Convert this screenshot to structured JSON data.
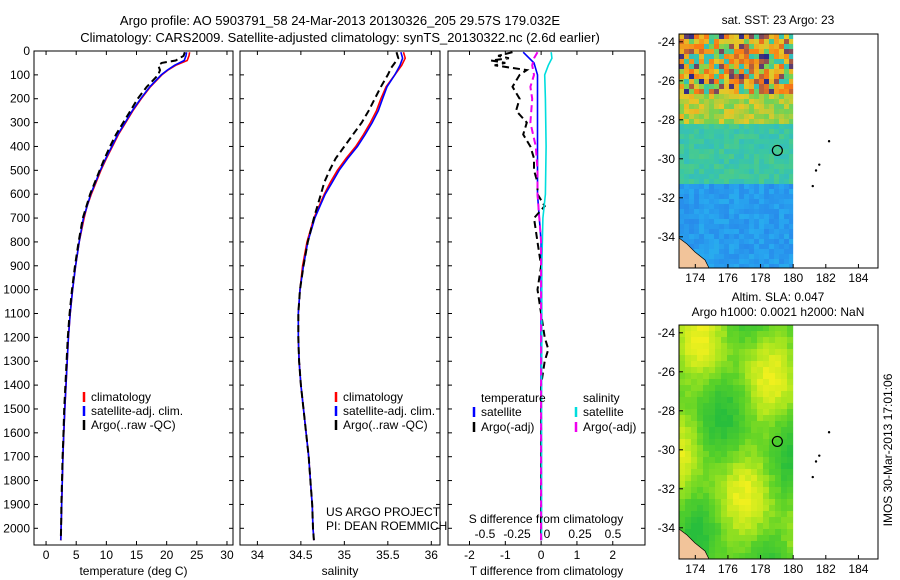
{
  "header": {
    "line1": "Argo profile: AO 5903791_58 24-Mar-2013 20130326_205 29.57S 179.032E",
    "line2": "Climatology: CARS2009. Satellite-adjusted climatology: synTS_20130322.nc (2.6d earlier)"
  },
  "colors": {
    "climatology": "#ff0000",
    "satellite": "#0000ff",
    "argo": "#000000",
    "sal_satellite": "#00dddd",
    "sal_argo": "#ee00ee",
    "land": "#f2c49a"
  },
  "chart_data": [
    {
      "type": "line",
      "panel": "temperature",
      "xlabel": "temperature (deg C)",
      "xlim": [
        -2,
        31
      ],
      "xticks": [
        0,
        5,
        10,
        15,
        20,
        25,
        30
      ],
      "ylim": [
        2070,
        0
      ],
      "yticks": [
        0,
        100,
        200,
        300,
        400,
        500,
        600,
        700,
        800,
        900,
        1000,
        1100,
        1200,
        1300,
        1400,
        1500,
        1600,
        1700,
        1800,
        1900,
        2000
      ],
      "grid": false,
      "legend": {
        "placement": "bottom-right",
        "entries": [
          "climatology",
          "satellite-adj. clim.",
          "Argo(..raw -QC)"
        ]
      },
      "series": [
        {
          "name": "climatology",
          "style": "solid",
          "color": "#ff0000",
          "depth": [
            5,
            20,
            40,
            60,
            80,
            100,
            150,
            200,
            250,
            300,
            350,
            400,
            450,
            500,
            550,
            600,
            650,
            700,
            800,
            900,
            1000,
            1100,
            1200,
            1300,
            1400,
            1500,
            1600,
            1700,
            1800,
            1900,
            2000,
            2050
          ],
          "values": [
            23.8,
            23.7,
            23.4,
            21.5,
            20.2,
            19.2,
            17.3,
            15.8,
            14.4,
            13.2,
            12.0,
            11.0,
            10.0,
            9.1,
            8.3,
            7.5,
            6.8,
            6.3,
            5.5,
            4.9,
            4.4,
            4.0,
            3.7,
            3.5,
            3.3,
            3.1,
            2.95,
            2.8,
            2.7,
            2.6,
            2.5,
            2.45
          ]
        },
        {
          "name": "satellite-adj. clim.",
          "style": "solid",
          "color": "#0000ff",
          "depth": [
            5,
            20,
            40,
            60,
            80,
            100,
            150,
            200,
            250,
            300,
            350,
            400,
            450,
            500,
            550,
            600,
            650,
            700,
            800,
            900,
            1000,
            1100,
            1200,
            1300,
            1400,
            1500,
            1600,
            1700,
            1800,
            1900,
            2000,
            2050
          ],
          "values": [
            23.3,
            23.2,
            22.9,
            21.3,
            20.1,
            19.1,
            17.2,
            15.7,
            14.3,
            13.1,
            11.9,
            10.9,
            9.9,
            9.0,
            8.2,
            7.4,
            6.8,
            6.2,
            5.5,
            4.9,
            4.4,
            4.0,
            3.7,
            3.5,
            3.3,
            3.1,
            2.95,
            2.8,
            2.7,
            2.6,
            2.5,
            2.45
          ]
        },
        {
          "name": "Argo(..raw -QC)",
          "style": "dashed",
          "color": "#000000",
          "depth": [
            5,
            20,
            40,
            50,
            60,
            80,
            100,
            150,
            200,
            250,
            300,
            350,
            400,
            450,
            500,
            550,
            600,
            650,
            700,
            800,
            900,
            1000,
            1100,
            1200,
            1300,
            1400,
            1500,
            1600,
            1700,
            1800,
            1900,
            2000,
            2050
          ],
          "values": [
            23.0,
            22.8,
            21.5,
            19.2,
            18.6,
            18.9,
            18.6,
            16.7,
            15.2,
            14.0,
            12.8,
            11.6,
            10.6,
            9.7,
            8.9,
            8.1,
            7.3,
            6.7,
            6.1,
            5.4,
            4.8,
            4.3,
            3.9,
            3.6,
            3.4,
            3.2,
            3.0,
            2.9,
            2.75,
            2.65,
            2.55,
            2.5,
            2.45
          ]
        }
      ]
    },
    {
      "type": "line",
      "panel": "salinity",
      "xlabel": "salinity",
      "xlim": [
        33.8,
        36.1
      ],
      "xticks": [
        34,
        34.5,
        35,
        35.5,
        36
      ],
      "ylim": [
        2070,
        0
      ],
      "grid": false,
      "legend": {
        "placement": "bottom-right",
        "entries": [
          "climatology",
          "satellite-adj. clim.",
          "Argo(..raw -QC)"
        ]
      },
      "annotation": [
        "US ARGO PROJECT",
        "PI: DEAN ROEMMICH"
      ],
      "series": [
        {
          "name": "climatology",
          "style": "solid",
          "color": "#ff0000",
          "depth": [
            5,
            30,
            60,
            80,
            100,
            150,
            200,
            250,
            300,
            350,
            400,
            450,
            500,
            550,
            600,
            650,
            700,
            800,
            900,
            1000,
            1100,
            1200,
            1300,
            1400,
            1500,
            1600,
            1700,
            1800,
            1900,
            2000,
            2050
          ],
          "values": [
            35.68,
            35.7,
            35.66,
            35.62,
            35.58,
            35.48,
            35.42,
            35.37,
            35.3,
            35.22,
            35.13,
            35.02,
            34.92,
            34.84,
            34.77,
            34.71,
            34.65,
            34.57,
            34.52,
            34.49,
            34.47,
            34.47,
            34.48,
            34.5,
            34.53,
            34.56,
            34.59,
            34.61,
            34.63,
            34.64,
            34.65
          ]
        },
        {
          "name": "satellite-adj. clim.",
          "style": "solid",
          "color": "#0000ff",
          "depth": [
            5,
            30,
            60,
            80,
            100,
            150,
            200,
            250,
            300,
            350,
            400,
            450,
            500,
            550,
            600,
            650,
            700,
            800,
            900,
            1000,
            1100,
            1200,
            1300,
            1400,
            1500,
            1600,
            1700,
            1800,
            1900,
            2000,
            2050
          ],
          "values": [
            35.65,
            35.67,
            35.64,
            35.61,
            35.58,
            35.49,
            35.44,
            35.39,
            35.32,
            35.24,
            35.15,
            35.04,
            34.94,
            34.86,
            34.78,
            34.72,
            34.66,
            34.58,
            34.53,
            34.49,
            34.47,
            34.47,
            34.48,
            34.5,
            34.53,
            34.56,
            34.59,
            34.61,
            34.63,
            34.64,
            34.65
          ]
        },
        {
          "name": "Argo(..raw -QC)",
          "style": "dashed",
          "color": "#000000",
          "depth": [
            5,
            30,
            50,
            70,
            100,
            150,
            200,
            250,
            300,
            350,
            400,
            450,
            500,
            550,
            600,
            650,
            700,
            800,
            900,
            1000,
            1100,
            1200,
            1300,
            1400,
            1500,
            1600,
            1700,
            1800,
            1900,
            2000,
            2050
          ],
          "values": [
            35.6,
            35.62,
            35.58,
            35.54,
            35.5,
            35.42,
            35.35,
            35.28,
            35.2,
            35.1,
            35.0,
            34.9,
            34.83,
            34.77,
            34.73,
            34.69,
            34.65,
            34.58,
            34.53,
            34.49,
            34.47,
            34.47,
            34.48,
            34.5,
            34.53,
            34.56,
            34.59,
            34.61,
            34.63,
            34.64,
            34.65
          ]
        }
      ]
    },
    {
      "type": "line",
      "panel": "difference",
      "xlabel": "T difference from climatology",
      "xlabel_top": "S difference from climatology",
      "xlim": [
        -2.6,
        2.9
      ],
      "xticks": [
        -2,
        -1,
        0,
        1,
        2
      ],
      "xticks_top": [
        "-0.5",
        "-0.25",
        "0",
        "0.25",
        "0.5"
      ],
      "ylim": [
        2070,
        0
      ],
      "legend": {
        "placement": "bottom",
        "temperature_title": "temperature",
        "salinity_title": "salinity",
        "entries": [
          "satellite",
          "Argo(-adj)",
          "satellite",
          "Argo(-adj)"
        ]
      },
      "series": [
        {
          "name": "temperature satellite",
          "color": "#0000ff",
          "style": "solid",
          "depth": [
            5,
            50,
            100,
            200,
            300,
            400,
            500,
            600,
            700,
            800,
            1000,
            1200,
            1500,
            2050
          ],
          "values": [
            -0.5,
            -0.2,
            -0.1,
            -0.1,
            -0.1,
            -0.1,
            -0.1,
            -0.1,
            -0.05,
            0,
            0,
            0,
            0,
            0
          ]
        },
        {
          "name": "temperature Argo(-adj)",
          "color": "#000000",
          "style": "dashed",
          "depth": [
            5,
            20,
            30,
            40,
            50,
            60,
            80,
            100,
            150,
            200,
            250,
            300,
            350,
            400,
            450,
            500,
            550,
            600,
            650,
            700,
            800,
            900,
            1000,
            1100,
            1200,
            1250,
            1300,
            1400,
            1500,
            1600,
            1800,
            2050
          ],
          "values": [
            -0.8,
            -1.2,
            -0.9,
            -1.4,
            -1.0,
            -1.3,
            -0.4,
            -0.6,
            -0.8,
            -0.6,
            -0.7,
            -0.4,
            -0.5,
            -0.3,
            -0.2,
            -0.2,
            -0.1,
            -0.1,
            0.1,
            -0.2,
            -0.1,
            0,
            -0.1,
            0,
            0.1,
            0.2,
            0.1,
            0,
            0,
            0,
            0,
            0
          ]
        },
        {
          "name": "salinity satellite",
          "color": "#00dddd",
          "style": "solid",
          "depth": [
            5,
            30,
            60,
            100,
            200,
            400,
            600,
            700,
            900,
            1200,
            1500,
            2050
          ],
          "values": [
            0.28,
            0.3,
            0.2,
            0.1,
            0.12,
            0.14,
            0.12,
            0.05,
            0.02,
            0.02,
            0.01,
            0.01
          ]
        },
        {
          "name": "salinity Argo(-adj)",
          "color": "#ee00ee",
          "style": "dashed",
          "depth": [
            5,
            30,
            60,
            100,
            150,
            200,
            300,
            400,
            500,
            600,
            700,
            800,
            1000,
            1200,
            1500,
            2050
          ],
          "values": [
            -0.1,
            -0.2,
            -0.25,
            -0.2,
            -0.3,
            -0.25,
            -0.3,
            -0.15,
            -0.1,
            -0.1,
            -0.05,
            0,
            0,
            0,
            0,
            0
          ]
        }
      ]
    },
    {
      "type": "heatmap",
      "panel": "map-sst",
      "title": "sat. SST: 23 Argo: 23",
      "xlim": [
        173,
        185.2
      ],
      "ylim": [
        -35.6,
        -23.6
      ],
      "xticks": [
        174,
        176,
        178,
        180,
        182,
        184
      ],
      "yticks": [
        -24,
        -26,
        -28,
        -30,
        -32,
        -34
      ],
      "profile_position": {
        "lon": 179.03,
        "lat": -29.57
      },
      "other_floats": [
        {
          "lon": 182.2,
          "lat": -29.1
        },
        {
          "lon": 181.6,
          "lat": -30.3
        },
        {
          "lon": 181.4,
          "lat": -30.6
        },
        {
          "lon": 181.2,
          "lat": -31.4
        }
      ],
      "data_extent_lon": [
        173,
        180
      ]
    },
    {
      "type": "heatmap",
      "panel": "map-sla",
      "title": "Altim. SLA: 0.047",
      "subtitle": "Argo h1000: 0.0021 h2000: NaN",
      "xlim": [
        173,
        185.2
      ],
      "ylim": [
        -35.6,
        -23.6
      ],
      "xticks": [
        174,
        176,
        178,
        180,
        182,
        184
      ],
      "yticks": [
        -24,
        -26,
        -28,
        -30,
        -32,
        -34
      ],
      "profile_position": {
        "lon": 179.03,
        "lat": -29.57
      },
      "other_floats": [
        {
          "lon": 182.2,
          "lat": -29.1
        },
        {
          "lon": 181.6,
          "lat": -30.3
        },
        {
          "lon": 181.4,
          "lat": -30.6
        },
        {
          "lon": 181.2,
          "lat": -31.4
        }
      ],
      "data_extent_lon": [
        173,
        180
      ]
    }
  ],
  "side_label": "IMOS 30-Mar-2013 17:01:06"
}
